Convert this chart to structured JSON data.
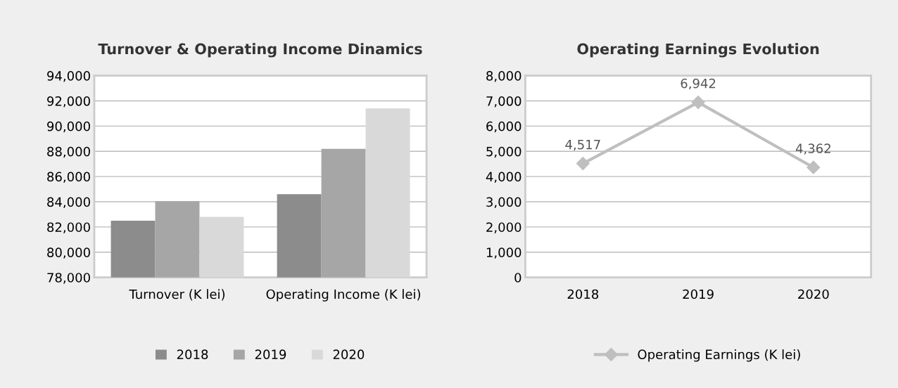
{
  "chart_data": [
    {
      "type": "bar",
      "title": "Turnover & Operating Income Dinamics",
      "categories": [
        "Turnover (K lei)",
        "Operating Income (K lei)"
      ],
      "series": [
        {
          "name": "2018",
          "color": "#8c8c8c",
          "values": [
            82500,
            84600
          ]
        },
        {
          "name": "2019",
          "color": "#a6a6a6",
          "values": [
            84050,
            88200
          ]
        },
        {
          "name": "2020",
          "color": "#d9d9d9",
          "values": [
            82800,
            91400
          ]
        }
      ],
      "ylim": [
        78000,
        94000
      ],
      "yticks": [
        {
          "value": 78000,
          "label": "78,000"
        },
        {
          "value": 80000,
          "label": "80,000"
        },
        {
          "value": 82000,
          "label": "82,000"
        },
        {
          "value": 84000,
          "label": "84,000"
        },
        {
          "value": 86000,
          "label": "86,000"
        },
        {
          "value": 88000,
          "label": "88,000"
        },
        {
          "value": 90000,
          "label": "90,000"
        },
        {
          "value": 92000,
          "label": "92,000"
        },
        {
          "value": 94000,
          "label": "94,000"
        }
      ],
      "grid": "y",
      "legend": "bottom"
    },
    {
      "type": "line",
      "title": "Operating Earnings Evolution",
      "categories": [
        "2018",
        "2019",
        "2020"
      ],
      "series": [
        {
          "name": "Operating Earnings (K lei)",
          "color": "#bfbfbf",
          "values": [
            4517,
            6942,
            4362
          ],
          "value_labels": [
            "4,517",
            "6,942",
            "4,362"
          ]
        }
      ],
      "ylim": [
        0,
        8000
      ],
      "yticks": [
        0,
        {
          "value": 1000,
          "label": "1,000"
        },
        {
          "value": 2000,
          "label": "2,000"
        },
        {
          "value": 3000,
          "label": "3,000"
        },
        {
          "value": 4000,
          "label": "4,000"
        },
        {
          "value": 5000,
          "label": "5,000"
        },
        {
          "value": 6000,
          "label": "6,000"
        },
        {
          "value": 7000,
          "label": "7,000"
        },
        {
          "value": 8000,
          "label": "8,000"
        }
      ],
      "grid": "y",
      "legend": "bottom",
      "marker": "diamond",
      "line_style": "solid"
    }
  ]
}
